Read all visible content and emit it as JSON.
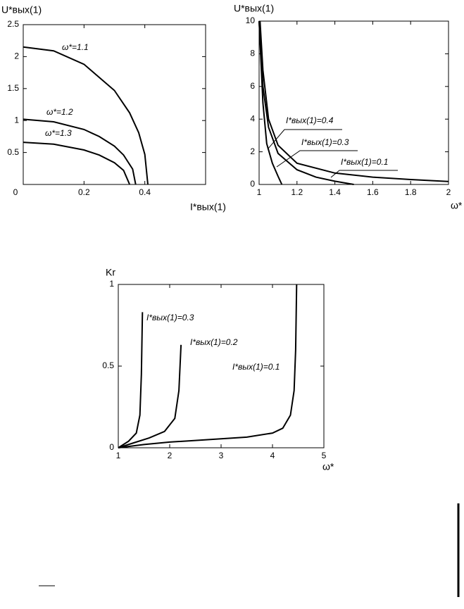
{
  "chart_data": [
    {
      "type": "line",
      "ylabel": "U*вых(1)",
      "xlabel": "I*вых(1)",
      "xlim": [
        0,
        0.6
      ],
      "ylim": [
        0,
        2.5
      ],
      "xticks": [
        0,
        0.2,
        0.4
      ],
      "yticks": [
        0.5,
        1,
        1.5,
        2,
        2.5
      ],
      "series": [
        {
          "name": "ω*=1.1",
          "color": "#000000",
          "x": [
            0,
            0.1,
            0.2,
            0.3,
            0.35,
            0.38,
            0.4,
            0.41
          ],
          "values": [
            2.15,
            2.09,
            1.88,
            1.47,
            1.12,
            0.81,
            0.47,
            0
          ]
        },
        {
          "name": "ω*=1.2",
          "color": "#000000",
          "x": [
            0,
            0.1,
            0.2,
            0.25,
            0.3,
            0.33,
            0.36,
            0.37
          ],
          "values": [
            1.02,
            0.98,
            0.86,
            0.75,
            0.6,
            0.46,
            0.24,
            0
          ]
        },
        {
          "name": "ω*=1.3",
          "color": "#000000",
          "x": [
            0,
            0.1,
            0.2,
            0.25,
            0.3,
            0.33,
            0.35
          ],
          "values": [
            0.66,
            0.63,
            0.54,
            0.46,
            0.34,
            0.22,
            0
          ]
        }
      ]
    },
    {
      "type": "line",
      "ylabel": "U*вых(1)",
      "xlabel": "ω*",
      "xlim": [
        1,
        2
      ],
      "ylim": [
        0,
        10
      ],
      "xticks": [
        1,
        1.2,
        1.4,
        1.6,
        1.8,
        2
      ],
      "yticks": [
        0,
        2,
        4,
        6,
        8,
        10
      ],
      "series": [
        {
          "name": "I*вых(1)=0.4",
          "color": "#000000",
          "x": [
            1.0,
            1.02,
            1.04,
            1.07,
            1.1,
            1.12
          ],
          "values": [
            10,
            5,
            2.5,
            1.3,
            0.5,
            0
          ]
        },
        {
          "name": "I*вых(1)=0.3",
          "color": "#000000",
          "x": [
            1.0,
            1.02,
            1.05,
            1.1,
            1.2,
            1.3,
            1.4,
            1.5
          ],
          "values": [
            10,
            6,
            3.5,
            1.9,
            0.9,
            0.45,
            0.2,
            0
          ]
        },
        {
          "name": "I*вых(1)=0.1",
          "color": "#000000",
          "x": [
            1.005,
            1.02,
            1.05,
            1.1,
            1.2,
            1.4,
            1.6,
            1.8,
            2
          ],
          "values": [
            10,
            7,
            4,
            2.4,
            1.3,
            0.7,
            0.45,
            0.3,
            0.18
          ]
        }
      ]
    },
    {
      "type": "line",
      "ylabel": "Kr",
      "xlabel": "ω*",
      "xlim": [
        1,
        5
      ],
      "ylim": [
        0,
        1
      ],
      "xticks": [
        1,
        2,
        3,
        4,
        5
      ],
      "yticks": [
        0,
        0.5,
        1
      ],
      "series": [
        {
          "name": "I*вых(1)=0.3",
          "color": "#000000",
          "x": [
            1,
            1.2,
            1.35,
            1.42,
            1.45,
            1.47
          ],
          "values": [
            0,
            0.04,
            0.09,
            0.2,
            0.45,
            0.83
          ]
        },
        {
          "name": "I*вых(1)=0.2",
          "color": "#000000",
          "x": [
            1,
            1.3,
            1.6,
            1.9,
            2.1,
            2.18,
            2.22
          ],
          "values": [
            0,
            0.03,
            0.06,
            0.1,
            0.18,
            0.35,
            0.63
          ]
        },
        {
          "name": "I*вых(1)=0.1",
          "color": "#000000",
          "x": [
            1,
            1.5,
            2,
            2.5,
            3,
            3.5,
            4,
            4.2,
            4.35,
            4.42,
            4.45,
            4.47
          ],
          "values": [
            0,
            0.02,
            0.035,
            0.045,
            0.055,
            0.065,
            0.09,
            0.12,
            0.2,
            0.35,
            0.6,
            1
          ]
        }
      ]
    }
  ]
}
